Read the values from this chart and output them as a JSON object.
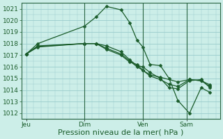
{
  "bg_color": "#cceee8",
  "grid_color": "#99cccc",
  "line_color": "#1a5c2a",
  "marker_color": "#1a5c2a",
  "ylim": [
    1011.5,
    1021.5
  ],
  "yticks": [
    1012,
    1013,
    1014,
    1015,
    1016,
    1017,
    1018,
    1019,
    1020,
    1021
  ],
  "xlabel": "Pression niveau de la mer( hPa )",
  "xlabel_fontsize": 8,
  "tick_fontsize": 6.5,
  "day_labels": [
    "Jeu",
    "Dim",
    "Ven",
    "Sam"
  ],
  "day_positions": [
    0,
    4,
    8,
    11
  ],
  "xlim": [
    -0.3,
    13.3
  ],
  "series": [
    {
      "x": [
        0,
        0.8,
        4,
        4.8,
        5.5,
        6.5,
        7.1,
        7.6,
        8.0,
        8.5,
        9.2,
        9.8,
        10.4,
        11.2,
        12.0,
        12.6
      ],
      "y": [
        1017.1,
        1018.0,
        1019.5,
        1020.3,
        1021.2,
        1020.9,
        1019.8,
        1018.3,
        1017.7,
        1016.2,
        1016.1,
        1015.0,
        1013.1,
        1012.0,
        1014.2,
        1013.8
      ]
    },
    {
      "x": [
        0,
        0.8,
        4,
        4.8,
        5.5,
        6.5,
        7.1,
        7.6,
        8.0,
        8.5,
        9.2,
        9.8,
        10.4,
        11.2,
        12.0,
        12.6
      ],
      "y": [
        1017.1,
        1017.8,
        1018.0,
        1018.0,
        1017.8,
        1017.3,
        1016.6,
        1016.1,
        1016.0,
        1015.5,
        1015.0,
        1014.2,
        1014.1,
        1014.8,
        1014.9,
        1014.2
      ]
    },
    {
      "x": [
        0,
        0.8,
        4,
        4.8,
        5.5,
        6.5,
        7.1,
        7.6,
        8.0,
        8.5,
        9.2,
        9.8,
        10.4,
        11.2,
        12.0,
        12.6
      ],
      "y": [
        1017.1,
        1017.7,
        1018.0,
        1018.0,
        1017.6,
        1017.1,
        1016.5,
        1016.0,
        1015.7,
        1015.2,
        1014.9,
        1014.5,
        1014.3,
        1014.9,
        1014.8,
        1014.3
      ]
    },
    {
      "x": [
        0,
        0.8,
        4,
        4.8,
        5.5,
        6.5,
        7.1,
        7.6,
        8.0,
        8.5,
        9.2,
        10.4,
        11.2,
        12.0,
        12.6
      ],
      "y": [
        1017.1,
        1017.75,
        1018.0,
        1018.0,
        1017.5,
        1017.0,
        1016.4,
        1016.2,
        1015.7,
        1015.3,
        1015.1,
        1014.7,
        1014.9,
        1014.8,
        1014.45
      ]
    }
  ],
  "vlines_x": [
    4,
    8,
    11
  ],
  "vline_color": "#2a6644",
  "vline_lw": 0.8
}
